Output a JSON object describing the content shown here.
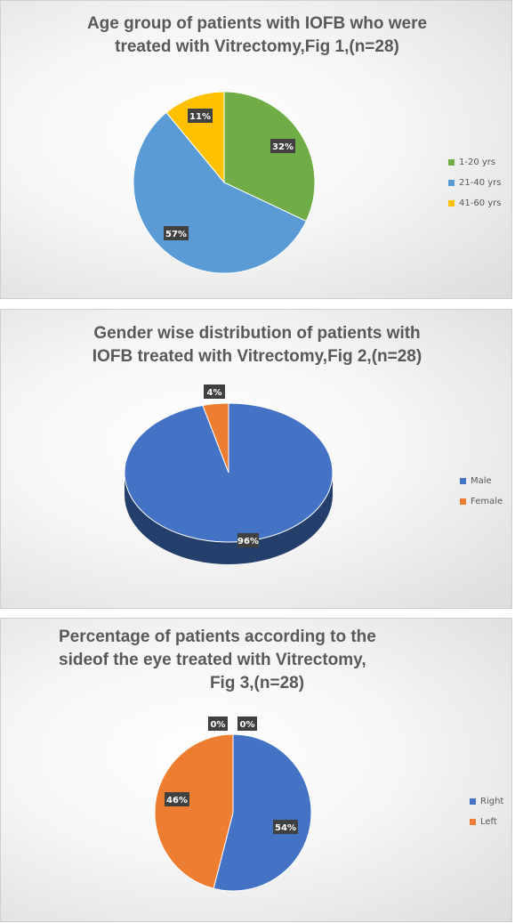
{
  "chart_data": [
    {
      "type": "pie",
      "title_lines": [
        "Age group of patients with  IOFB who were",
        "treated with Vitrectomy,Fig 1,(n=28)"
      ],
      "categories": [
        "1-20 yrs",
        "21-40 yrs",
        "41-60 yrs"
      ],
      "values": [
        32,
        57,
        11
      ],
      "labels": [
        "32%",
        "57%",
        "11%"
      ],
      "colors": [
        "#70ad47",
        "#5b9bd5",
        "#ffc000"
      ],
      "legend": "right"
    },
    {
      "type": "pie",
      "style": "3d",
      "title_lines": [
        "Gender wise distribution of patients with",
        "IOFB treated with Vitrectomy,Fig 2,(n=28)"
      ],
      "categories": [
        "Male",
        "Female"
      ],
      "values": [
        96,
        4
      ],
      "labels": [
        "96%",
        "4%"
      ],
      "colors": [
        "#4472c4",
        "#ed7d31"
      ],
      "legend": "right"
    },
    {
      "type": "pie",
      "title_lines": [
        "Percentage of patients according to the",
        "sideof the eye treated with Vitrectomy,",
        "Fig 3,(n=28)"
      ],
      "categories": [
        "Right",
        "Left"
      ],
      "values": [
        54,
        46
      ],
      "labels": [
        "54%",
        "46%"
      ],
      "extra_labels": [
        "0%",
        "0%"
      ],
      "colors": [
        "#4472c4",
        "#ed7d31"
      ],
      "legend": "right"
    }
  ]
}
